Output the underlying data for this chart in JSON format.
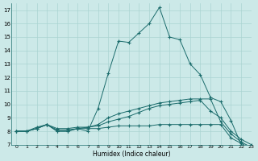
{
  "xlabel": "Humidex (Indice chaleur)",
  "bg_color": "#cce9e8",
  "line_color": "#1a6b6b",
  "grid_color": "#aad4d2",
  "xlim": [
    -0.5,
    23
  ],
  "ylim": [
    7,
    17.5
  ],
  "yticks": [
    7,
    8,
    9,
    10,
    11,
    12,
    13,
    14,
    15,
    16,
    17
  ],
  "xticks": [
    0,
    1,
    2,
    3,
    4,
    5,
    6,
    7,
    8,
    9,
    10,
    11,
    12,
    13,
    14,
    15,
    16,
    17,
    18,
    19,
    20,
    21,
    22,
    23
  ],
  "line1_x": [
    0,
    1,
    2,
    3,
    4,
    5,
    6,
    7,
    8,
    9,
    10,
    11,
    12,
    13,
    14,
    15,
    16,
    17,
    18,
    19,
    20,
    21,
    22,
    23
  ],
  "line1_y": [
    8.0,
    8.0,
    8.2,
    8.5,
    8.0,
    8.0,
    8.2,
    8.0,
    9.7,
    12.3,
    14.7,
    14.6,
    15.3,
    16.0,
    17.2,
    15.0,
    14.8,
    13.0,
    12.2,
    10.5,
    10.2,
    8.8,
    7.0,
    6.7
  ],
  "line2_x": [
    0,
    1,
    2,
    3,
    4,
    5,
    6,
    7,
    8,
    9,
    10,
    11,
    12,
    13,
    14,
    15,
    16,
    17,
    18,
    19,
    20,
    21,
    22,
    23
  ],
  "line2_y": [
    8.0,
    8.0,
    8.3,
    8.5,
    8.2,
    8.2,
    8.3,
    8.3,
    8.5,
    9.0,
    9.3,
    9.5,
    9.7,
    9.9,
    10.1,
    10.2,
    10.3,
    10.4,
    10.4,
    10.4,
    8.7,
    7.8,
    7.2,
    6.8
  ],
  "line3_x": [
    0,
    1,
    2,
    3,
    4,
    5,
    6,
    7,
    8,
    9,
    10,
    11,
    12,
    13,
    14,
    15,
    16,
    17,
    18,
    19,
    20,
    21,
    22,
    23
  ],
  "line3_y": [
    8.0,
    8.0,
    8.2,
    8.5,
    8.0,
    8.0,
    8.2,
    8.2,
    8.2,
    8.3,
    8.4,
    8.4,
    8.4,
    8.4,
    8.5,
    8.5,
    8.5,
    8.5,
    8.5,
    8.5,
    8.5,
    7.5,
    7.1,
    6.7
  ],
  "line4_x": [
    0,
    1,
    2,
    3,
    4,
    5,
    6,
    7,
    8,
    9,
    10,
    11,
    12,
    13,
    14,
    15,
    16,
    17,
    18,
    19,
    20,
    21,
    22,
    23
  ],
  "line4_y": [
    8.0,
    8.0,
    8.2,
    8.5,
    8.1,
    8.1,
    8.2,
    8.3,
    8.4,
    8.7,
    8.9,
    9.1,
    9.4,
    9.7,
    9.9,
    10.0,
    10.1,
    10.2,
    10.3,
    9.5,
    9.0,
    8.0,
    7.4,
    7.0
  ]
}
